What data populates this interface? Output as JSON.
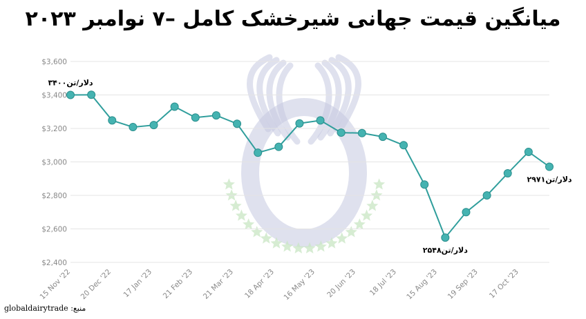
{
  "title": "میانگین قیمت جهانی شیرخشک کامل –۷ نوامبر ۲۰۲۳",
  "source": {
    "label": "منبع:",
    "value": "globaldairytrade"
  },
  "colors": {
    "line": "#2f9e9c",
    "marker": "#45b3b1",
    "marker_stroke": "#2a8f8d",
    "grid": "#e4e4e4",
    "axis_text": "#888888",
    "watermark": "#c5c9e0",
    "watermark_stars": "#c8e6c3"
  },
  "chart_data": {
    "type": "line",
    "title": "میانگین قیمت جهانی شیرخشک کامل –۷ نوامبر ۲۰۲۳",
    "xlabel": "",
    "ylabel": "",
    "ylim": [
      2400,
      3600
    ],
    "y_ticks": [
      2400,
      2600,
      2800,
      3000,
      3200,
      3400,
      3600
    ],
    "y_tick_labels": [
      "$2,400",
      "$2,600",
      "$2,800",
      "$3,000",
      "$3,200",
      "$3,400",
      "$3,600"
    ],
    "grid": true,
    "x_tick_labels": [
      "15 Nov '22",
      "20 Dec '22",
      "17 Jan '23",
      "21 Feb '23",
      "21 Mar '23",
      "18 Apr '23",
      "16 May '23",
      "20 Jun '23",
      "18 Jul '23",
      "15 Aug '23",
      "19 Sep '23",
      "17 Oct '23"
    ],
    "series": [
      {
        "values": [
          3400,
          3401,
          3248,
          3208,
          3220,
          3330,
          3265,
          3278,
          3228,
          3055,
          3090,
          3230,
          3248,
          3175,
          3172,
          3150,
          3100,
          2865,
          2548,
          2700,
          2800,
          2932,
          3060,
          2971
        ]
      }
    ],
    "annotations": [
      {
        "index": 0,
        "text": "۳۴۰۰دلار/تن",
        "position": "above"
      },
      {
        "index": 18,
        "text": "۲۵۴۸دلار/تن",
        "position": "below"
      },
      {
        "index": 23,
        "text": "۲۹۷۱دلار/تن",
        "position": "below"
      }
    ]
  }
}
